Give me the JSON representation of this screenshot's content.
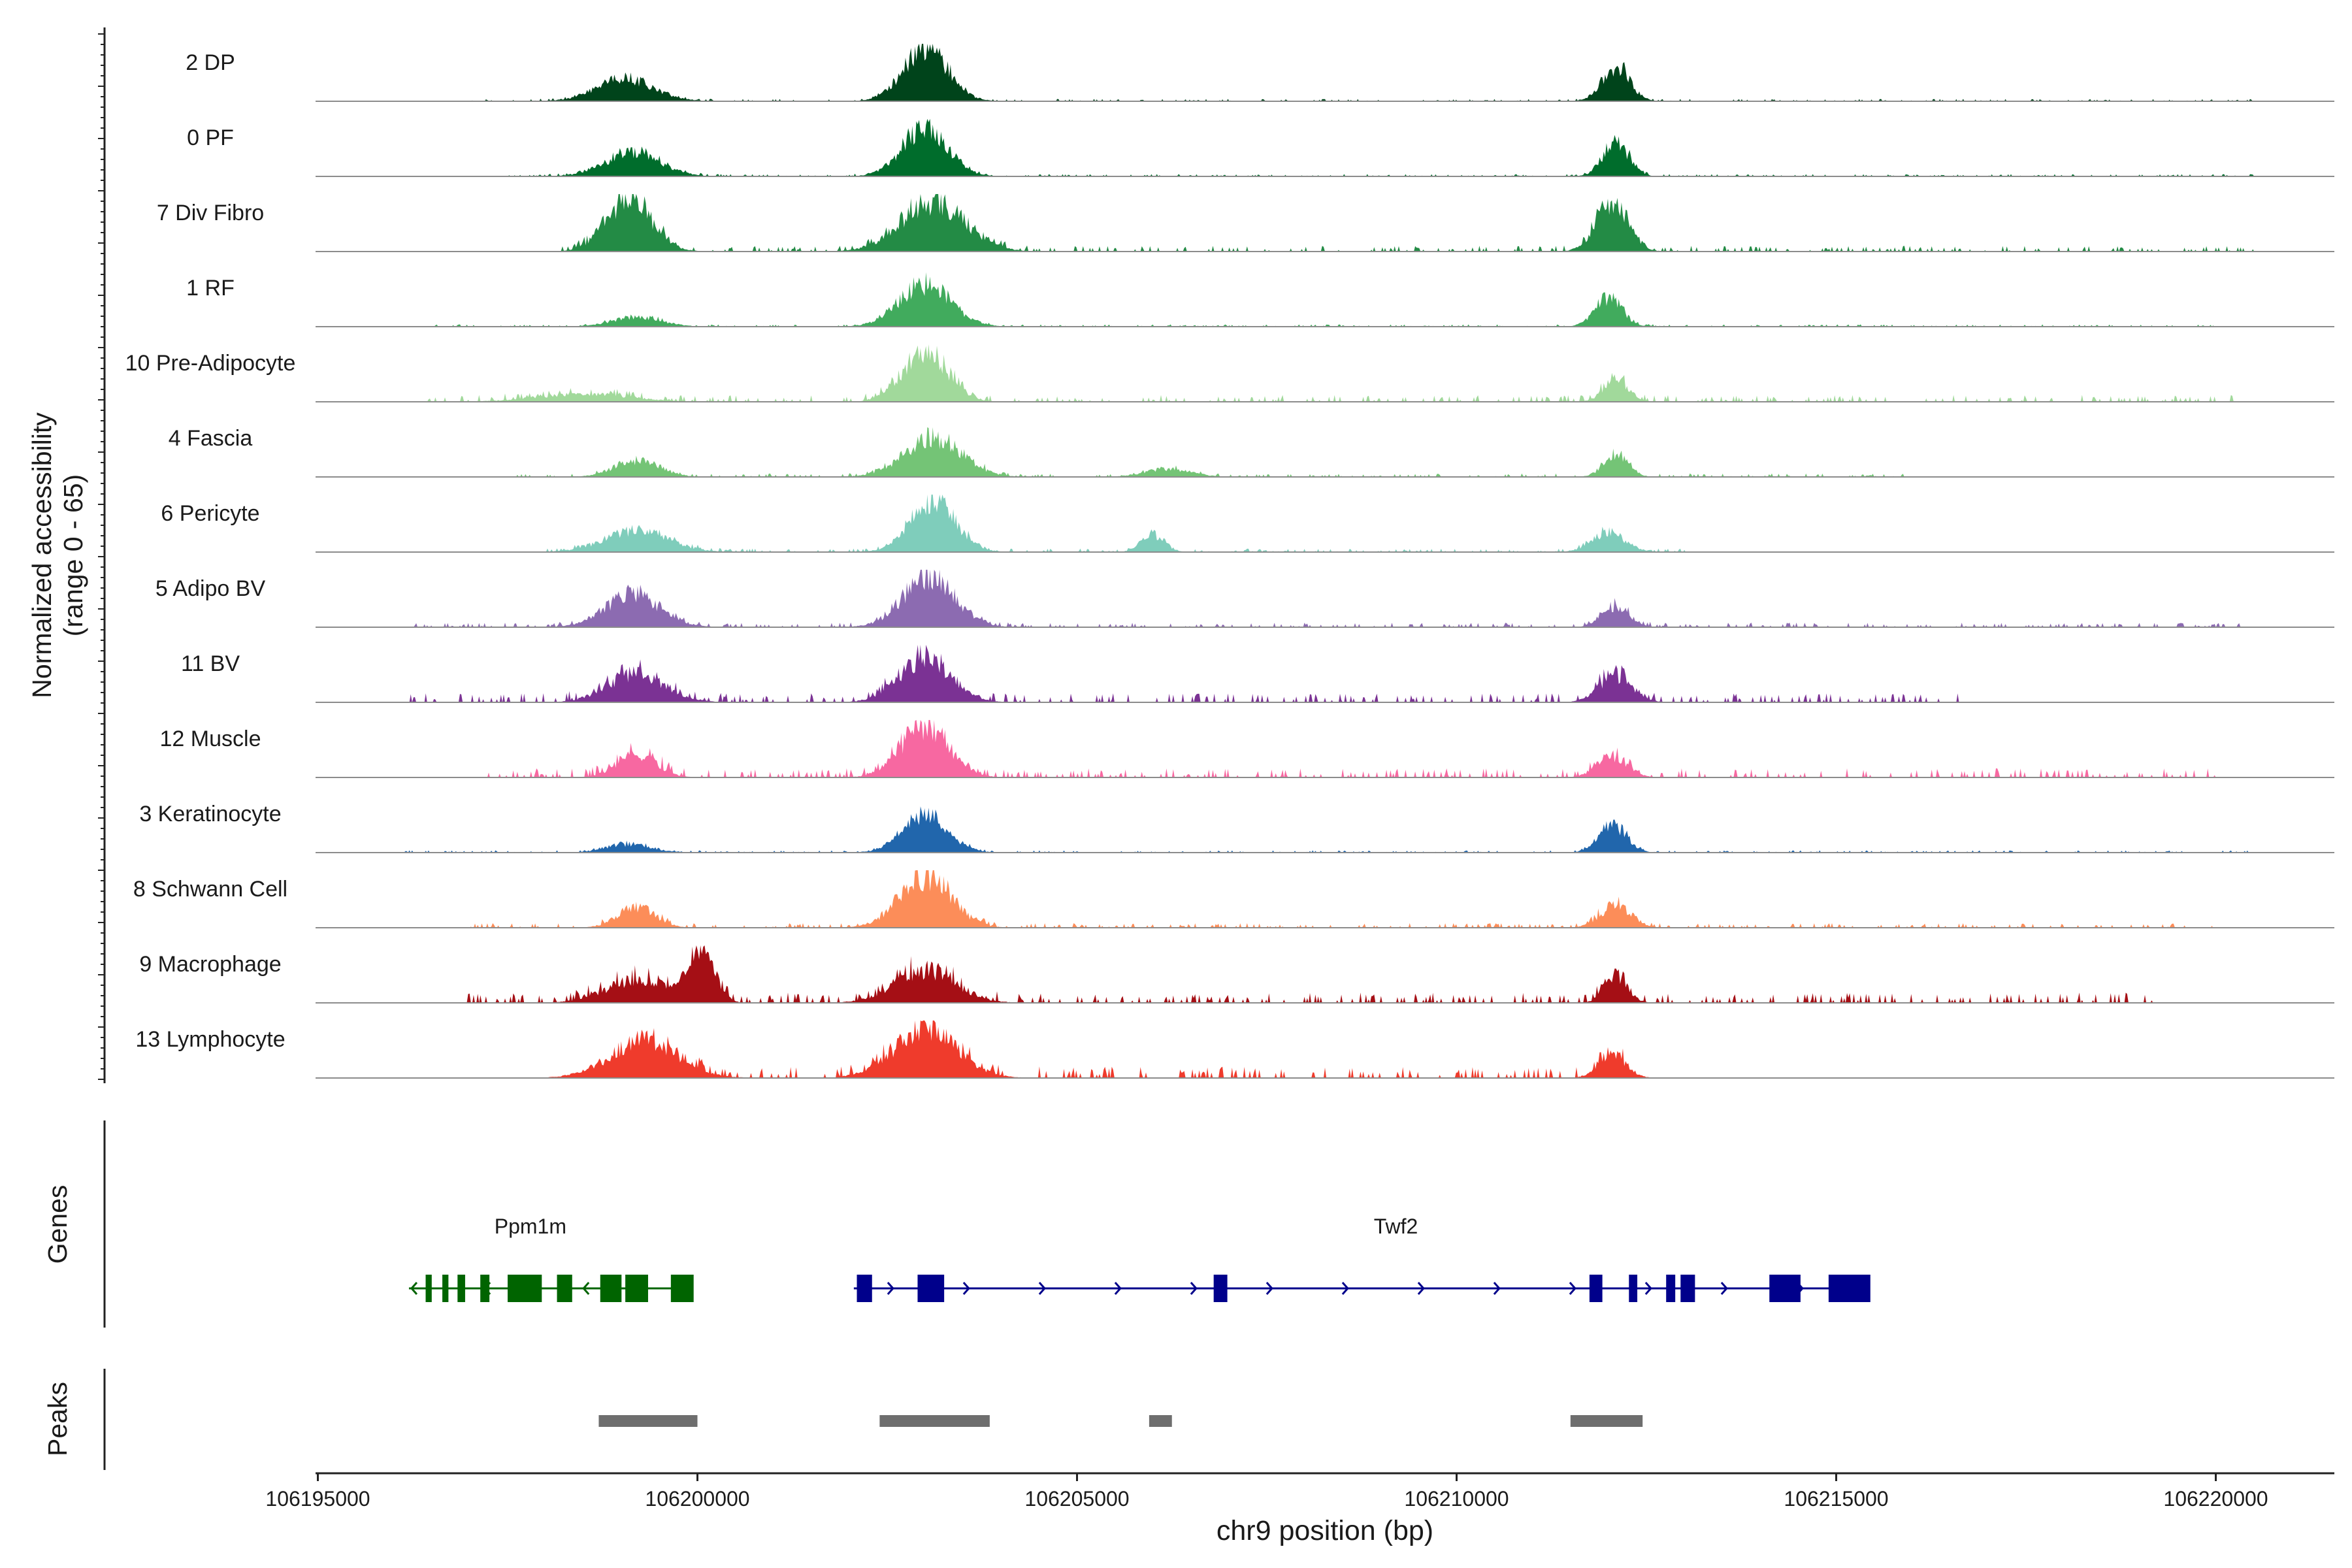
{
  "chart_data": {
    "type": "area",
    "title": "",
    "ylabel_line1": "Normalized accessibility",
    "ylabel_line2": "(range 0 - 65)",
    "xlabel": "chr9 position (bp)",
    "xlim": [
      106195000,
      106221500
    ],
    "ylim": [
      0,
      65
    ],
    "x_ticks": [
      106195000,
      106200000,
      106205000,
      106210000,
      106215000,
      106220000
    ],
    "x_tick_labels": [
      "106195000",
      "106200000",
      "106205000",
      "106210000",
      "106215000",
      "106220000"
    ],
    "track_labels": {
      "genes": "Genes",
      "peaks": "Peaks"
    },
    "series": [
      {
        "name": "2 DP",
        "color": "#00441b",
        "peaks": [
          [
            106199050,
            28,
            380
          ],
          [
            106203000,
            62,
            300
          ],
          [
            106212100,
            43,
            180
          ]
        ],
        "noise": [
          106197000,
          106220500
        ],
        "noise_level": 2
      },
      {
        "name": "0 PF",
        "color": "#006d2c",
        "peaks": [
          [
            106199150,
            30,
            360
          ],
          [
            106203000,
            60,
            300
          ],
          [
            106212100,
            42,
            170
          ]
        ],
        "noise": [
          106197500,
          106220500
        ],
        "noise_level": 2
      },
      {
        "name": "7 Div Fibro",
        "color": "#238b45",
        "peaks": [
          [
            106199100,
            65,
            300
          ],
          [
            106203100,
            62,
            420
          ],
          [
            106212050,
            60,
            210
          ]
        ],
        "noise": [
          106198000,
          106220500
        ],
        "noise_level": 5
      },
      {
        "name": "1 RF",
        "color": "#41ab5d",
        "peaks": [
          [
            106199200,
            12,
            320
          ],
          [
            106203000,
            52,
            340
          ],
          [
            106212000,
            35,
            180
          ]
        ],
        "noise": [
          106196500,
          106220000
        ],
        "noise_level": 2
      },
      {
        "name": "10 Pre-Adipocyte",
        "color": "#a1d99b",
        "peaks": [
          [
            106198500,
            10,
            600
          ],
          [
            106203000,
            62,
            300
          ],
          [
            106212100,
            28,
            160
          ]
        ],
        "noise": [
          106196400,
          106220400
        ],
        "noise_level": 6
      },
      {
        "name": "4 Fascia",
        "color": "#74c476",
        "peaks": [
          [
            106199200,
            20,
            300
          ],
          [
            106203100,
            48,
            380
          ],
          [
            106206200,
            10,
            300
          ],
          [
            106212100,
            28,
            160
          ]
        ],
        "noise": [
          106197500,
          106216000
        ],
        "noise_level": 3
      },
      {
        "name": "6 Pericyte",
        "color": "#7fcdbb",
        "peaks": [
          [
            106199200,
            26,
            420
          ],
          [
            106203100,
            62,
            300
          ],
          [
            106206000,
            22,
            150
          ],
          [
            106212000,
            24,
            220
          ]
        ],
        "noise": [
          106198000,
          106213000
        ],
        "noise_level": 3
      },
      {
        "name": "5 Adipo BV",
        "color": "#8c6bb1",
        "peaks": [
          [
            106199150,
            40,
            360
          ],
          [
            106203050,
            62,
            340
          ],
          [
            106212100,
            26,
            180
          ]
        ],
        "noise": [
          106196200,
          106220500
        ],
        "noise_level": 4
      },
      {
        "name": "11 BV",
        "color": "#7b3294",
        "peaks": [
          [
            106199200,
            35,
            380
          ],
          [
            106203000,
            55,
            340
          ],
          [
            106212100,
            32,
            220
          ]
        ],
        "noise": [
          106196200,
          106217000
        ],
        "noise_level": 8
      },
      {
        "name": "12 Muscle",
        "color": "#f768a1",
        "peaks": [
          [
            106199200,
            28,
            260
          ],
          [
            106203000,
            62,
            320
          ],
          [
            106212050,
            26,
            200
          ]
        ],
        "noise": [
          106197200,
          106220000
        ],
        "noise_level": 8
      },
      {
        "name": "3 Keratinocyte",
        "color": "#2166ac",
        "peaks": [
          [
            106199100,
            10,
            300
          ],
          [
            106203000,
            45,
            300
          ],
          [
            106212050,
            35,
            180
          ]
        ],
        "noise": [
          106196100,
          106220500
        ],
        "noise_level": 2
      },
      {
        "name": "8 Schwann Cell",
        "color": "#fc8d59",
        "peaks": [
          [
            106199200,
            25,
            250
          ],
          [
            106203000,
            62,
            340
          ],
          [
            106212100,
            28,
            200
          ]
        ],
        "noise": [
          106197000,
          106220000
        ],
        "noise_level": 4
      },
      {
        "name": "9 Macrophage",
        "color": "#a50f15",
        "peaks": [
          [
            106199200,
            28,
            400
          ],
          [
            106200050,
            65,
            170
          ],
          [
            106203000,
            40,
            400
          ],
          [
            106212100,
            34,
            150
          ]
        ],
        "noise": [
          106196900,
          106219200
        ],
        "noise_level": 9
      },
      {
        "name": "13 Lymphocyte",
        "color": "#ef3b2c",
        "peaks": [
          [
            106199300,
            45,
            450
          ],
          [
            106203000,
            58,
            420
          ],
          [
            106212050,
            30,
            180
          ]
        ],
        "noise": [
          106198800,
          106212200
        ],
        "noise_level": 10
      }
    ],
    "genes": [
      {
        "name": "Ppm1m",
        "label_x": 106197800,
        "color": "#006400",
        "strand": "-",
        "start": 106196200,
        "end": 106199700,
        "exons": [
          [
            106196420,
            106196500
          ],
          [
            106196640,
            106196720
          ],
          [
            106196840,
            106196940
          ],
          [
            106197140,
            106197260
          ],
          [
            106197500,
            106197950
          ],
          [
            106198150,
            106198350
          ],
          [
            106198720,
            106199000
          ],
          [
            106199050,
            106199350
          ],
          [
            106199650,
            106199950
          ]
        ]
      },
      {
        "name": "Twf2",
        "label_x": 106209200,
        "color": "#00008b",
        "strand": "+",
        "start": 106202060,
        "end": 106215400,
        "exons": [
          [
            106202100,
            106202300
          ],
          [
            106202900,
            106203250
          ],
          [
            106206800,
            106206980
          ],
          [
            106211750,
            106211920
          ],
          [
            106212270,
            106212380
          ],
          [
            106212760,
            106212880
          ],
          [
            106212950,
            106213140
          ],
          [
            106214120,
            106214530
          ],
          [
            106214900,
            106215450
          ]
        ]
      }
    ],
    "peaks_track": [
      [
        106198700,
        106200000
      ],
      [
        106202400,
        106203850
      ],
      [
        106205950,
        106206250
      ],
      [
        106211500,
        106212450
      ]
    ]
  }
}
